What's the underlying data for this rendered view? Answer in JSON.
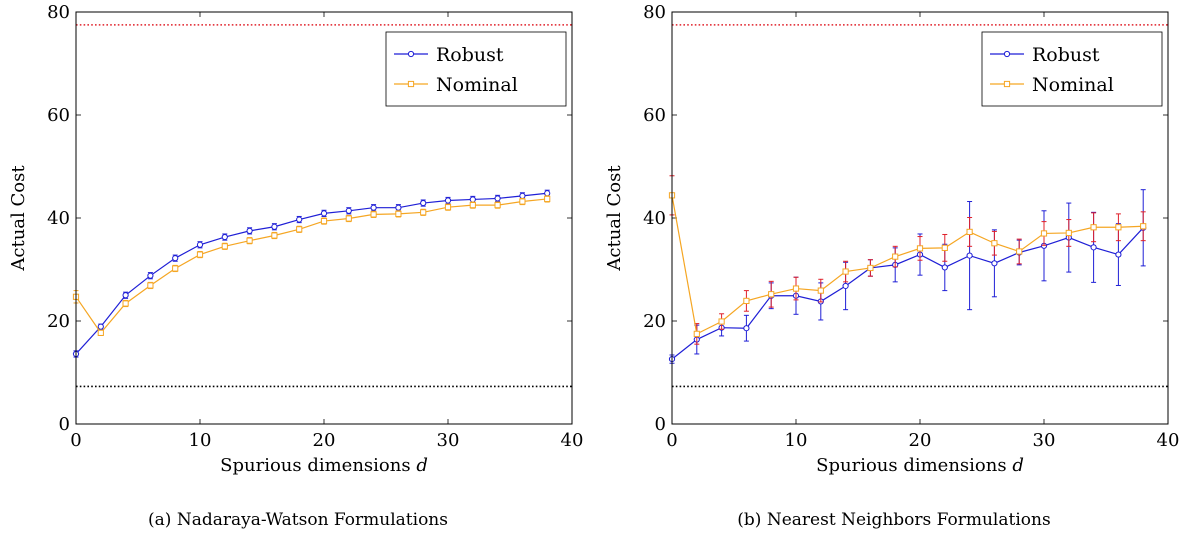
{
  "chart_data": [
    {
      "type": "line",
      "caption": "(a) Nadaraya-Watson Formulations",
      "xlabel": "Spurious dimensions d",
      "ylabel": "Actual Cost",
      "xlim": [
        0,
        40
      ],
      "ylim": [
        0,
        80
      ],
      "xticks": [
        0,
        10,
        20,
        30,
        40
      ],
      "yticks": [
        0,
        20,
        40,
        60,
        80
      ],
      "legend_position": "top-right",
      "reference_lines": [
        {
          "y": 77.5,
          "color": "#e0202a",
          "style": "dotted"
        },
        {
          "y": 7.3,
          "color": "#000000",
          "style": "dotted"
        }
      ],
      "x": [
        0,
        2,
        4,
        6,
        8,
        10,
        12,
        14,
        16,
        18,
        20,
        22,
        24,
        26,
        28,
        30,
        32,
        34,
        36,
        38
      ],
      "series": [
        {
          "name": "Robust",
          "color": "#1f1fd6",
          "marker": "circle",
          "values": [
            13.6,
            18.9,
            25.0,
            28.8,
            32.2,
            34.8,
            36.3,
            37.5,
            38.3,
            39.7,
            40.9,
            41.4,
            42.0,
            42.0,
            42.9,
            43.4,
            43.6,
            43.8,
            44.3,
            44.8
          ],
          "errors": [
            0.6,
            0.5,
            0.6,
            0.6,
            0.6,
            0.6,
            0.6,
            0.6,
            0.6,
            0.6,
            0.6,
            0.6,
            0.6,
            0.6,
            0.6,
            0.6,
            0.6,
            0.6,
            0.6,
            0.6
          ]
        },
        {
          "name": "Nominal",
          "color": "#f5a623",
          "marker": "square",
          "values": [
            24.7,
            17.7,
            23.4,
            26.9,
            30.2,
            32.9,
            34.5,
            35.6,
            36.6,
            37.8,
            39.4,
            39.9,
            40.7,
            40.8,
            41.1,
            42.1,
            42.5,
            42.5,
            43.2,
            43.7
          ],
          "errors": [
            1.2,
            0.5,
            0.6,
            0.6,
            0.6,
            0.6,
            0.6,
            0.6,
            0.6,
            0.6,
            0.6,
            0.6,
            0.6,
            0.6,
            0.6,
            0.6,
            0.6,
            0.6,
            0.6,
            0.6
          ]
        }
      ]
    },
    {
      "type": "line",
      "caption": "(b) Nearest Neighbors Formulations",
      "xlabel": "Spurious dimensions d",
      "ylabel": "Actual Cost",
      "xlim": [
        0,
        40
      ],
      "ylim": [
        0,
        80
      ],
      "xticks": [
        0,
        10,
        20,
        30,
        40
      ],
      "yticks": [
        0,
        20,
        40,
        60,
        80
      ],
      "legend_position": "top-right",
      "reference_lines": [
        {
          "y": 77.5,
          "color": "#e0202a",
          "style": "dotted"
        },
        {
          "y": 7.3,
          "color": "#000000",
          "style": "dotted"
        }
      ],
      "x": [
        0,
        2,
        4,
        6,
        8,
        10,
        12,
        14,
        16,
        18,
        20,
        22,
        24,
        26,
        28,
        30,
        32,
        34,
        36,
        38
      ],
      "series": [
        {
          "name": "Robust",
          "color": "#1f1fd6",
          "marker": "circle",
          "values": [
            12.6,
            16.4,
            18.7,
            18.6,
            24.9,
            24.9,
            23.8,
            26.8,
            30.3,
            30.9,
            32.9,
            30.4,
            32.7,
            31.2,
            33.3,
            34.6,
            36.2,
            34.3,
            32.9,
            38.1
          ],
          "errors": [
            0.8,
            2.8,
            1.6,
            2.5,
            2.5,
            3.6,
            3.6,
            4.6,
            1.6,
            3.3,
            4.0,
            4.5,
            10.5,
            6.5,
            2.4,
            6.8,
            6.7,
            6.8,
            6.0,
            7.4
          ]
        },
        {
          "name": "Nominal",
          "color": "#f5a623",
          "marker": "square",
          "values": [
            44.4,
            17.5,
            19.9,
            23.9,
            25.2,
            26.3,
            25.9,
            29.6,
            30.3,
            32.5,
            34.1,
            34.2,
            37.3,
            35.1,
            33.5,
            37.0,
            37.1,
            38.2,
            38.2,
            38.4
          ],
          "errors": [
            3.8,
            2.0,
            1.5,
            2.0,
            2.5,
            2.2,
            2.2,
            2.0,
            1.6,
            2.0,
            2.3,
            2.6,
            2.8,
            2.3,
            2.4,
            2.3,
            2.6,
            2.8,
            2.6,
            2.8
          ]
        }
      ]
    }
  ]
}
